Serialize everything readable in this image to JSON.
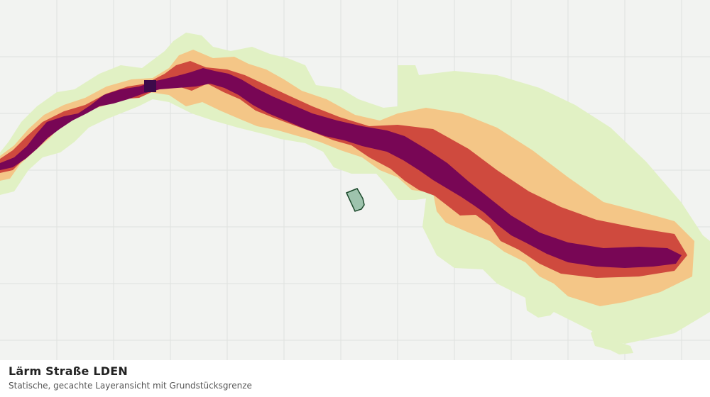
{
  "layer": {
    "title": "Lärm Straße LDEN",
    "subtitle": "Statische, gecachte Layeransicht mit Grundstücksgrenze"
  },
  "colors": {
    "background": "#f2f3f1",
    "grid": "#dfe1de",
    "noise_band_1": "#e1f1c4",
    "noise_band_2": "#f4c687",
    "noise_band_3": "#cf4a3e",
    "noise_band_4": "#780655",
    "noise_band_5": "#3d0a4a",
    "parcel_fill": "#9ec3ad",
    "parcel_stroke": "#1c4a2c"
  },
  "noise_bands": [
    {
      "name": "band-1",
      "color": "#e1f1c4"
    },
    {
      "name": "band-2",
      "color": "#f4c687"
    },
    {
      "name": "band-3",
      "color": "#cf4a3e"
    },
    {
      "name": "band-4",
      "color": "#780655"
    },
    {
      "name": "band-5",
      "color": "#3d0a4a"
    }
  ]
}
